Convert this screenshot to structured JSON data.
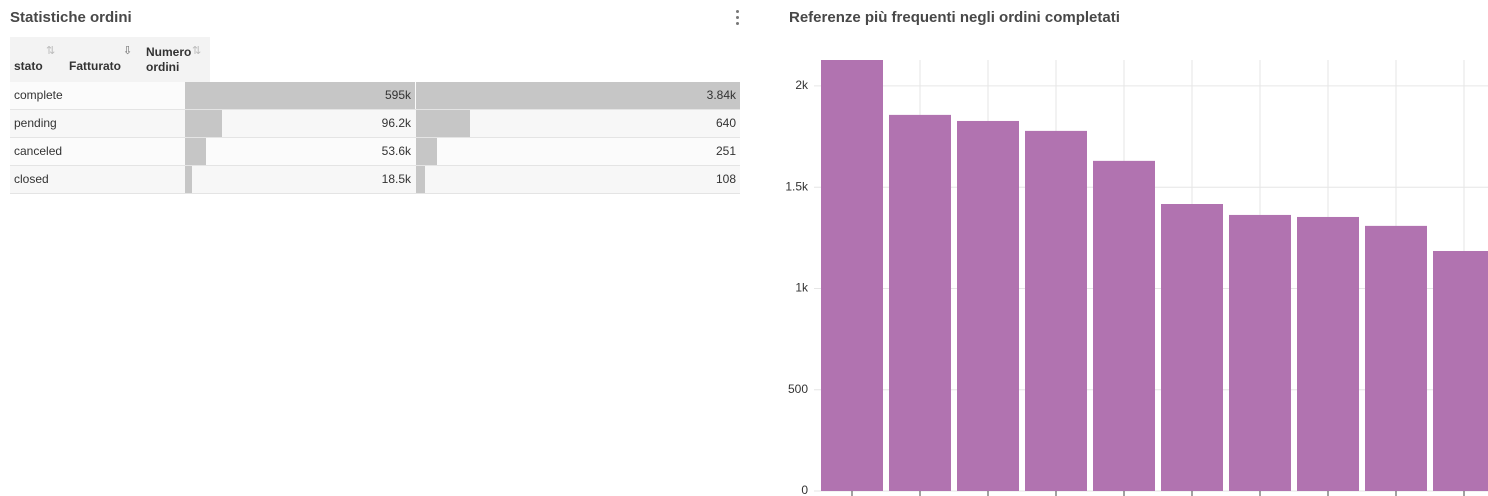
{
  "table": {
    "title": "Statistiche ordini",
    "columns": [
      "stato",
      "Fatturato",
      "Numero ordini"
    ],
    "rows": [
      {
        "stato": "complete",
        "fatturato": 595000,
        "fatturato_label": "595k",
        "ordini": 3840,
        "ordini_label": "3.84k"
      },
      {
        "stato": "pending",
        "fatturato": 96200,
        "fatturato_label": "96.2k",
        "ordini": 640,
        "ordini_label": "640"
      },
      {
        "stato": "canceled",
        "fatturato": 53600,
        "fatturato_label": "53.6k",
        "ordini": 251,
        "ordini_label": "251"
      },
      {
        "stato": "closed",
        "fatturato": 18500,
        "fatturato_label": "18.5k",
        "ordini": 108,
        "ordini_label": "108"
      }
    ]
  },
  "chart_data": {
    "type": "bar",
    "title": "Referenze più frequenti negli ordini completati",
    "categories": [
      null,
      null,
      null,
      null,
      null,
      null,
      null,
      null,
      null,
      null
    ],
    "values": [
      2128,
      1857,
      1827,
      1778,
      1630,
      1417,
      1363,
      1353,
      1309,
      1185
    ],
    "color": "#b173b0",
    "ylim": [
      0,
      2128
    ],
    "yticks": [
      0,
      500,
      {
        "value": 1000,
        "label": "1k"
      },
      {
        "value": 1500,
        "label": "1.5k"
      },
      {
        "value": 2000,
        "label": "2k"
      }
    ],
    "grid": true
  }
}
